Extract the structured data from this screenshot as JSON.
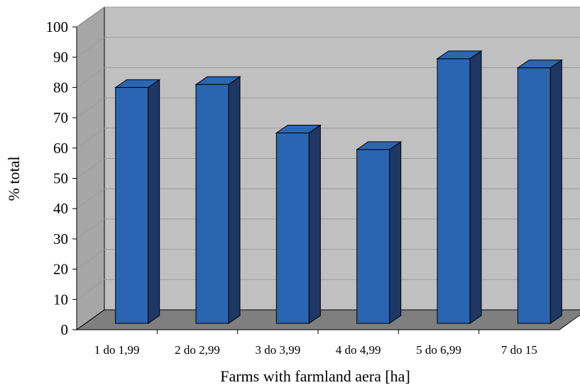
{
  "chart_data": {
    "type": "bar",
    "categories": [
      "1 do 1,99",
      "2 do 2,99",
      "3 do 3,99",
      "4 do 4,99",
      "5 do 6,99",
      "7 do 15"
    ],
    "values": [
      80,
      81,
      65,
      59.5,
      89.5,
      86.5
    ],
    "xlabel": "Farms with farmland aera [ha]",
    "ylabel": "% total",
    "ylim": [
      0,
      100
    ],
    "yticks": [
      0,
      10,
      20,
      30,
      40,
      50,
      60,
      70,
      80,
      90,
      100
    ],
    "grid": true,
    "style": "3d-column",
    "colors": {
      "bar_front": "#2a65b2",
      "bar_side": "#1e3765",
      "bar_top": "#2b66b3",
      "back_wall": "#c0c0c0",
      "side_wall": "#a6a6a6",
      "floor": "#7f7f7f"
    }
  }
}
